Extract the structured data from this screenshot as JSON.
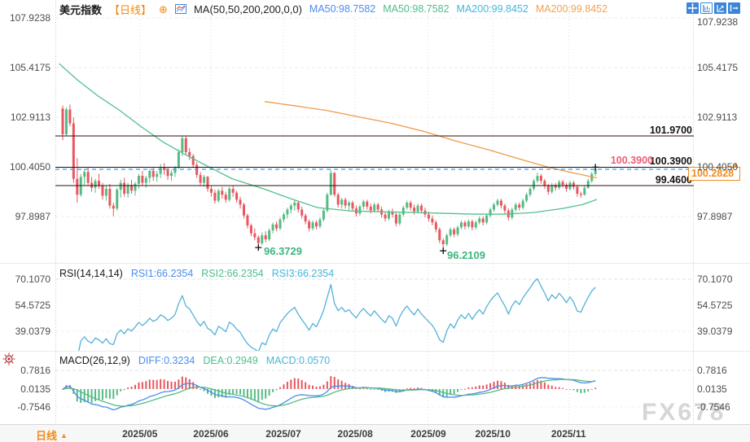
{
  "header": {
    "symbol": "美元指数",
    "period_tag": "【日线】",
    "ma_label": "MA(50,50,200,200,0,0)",
    "ma50_a": "MA50:98.7582",
    "ma50_b": "MA50:98.7582",
    "ma200_a": "MA200:99.8452",
    "ma200_b": "MA200:99.8452"
  },
  "toolbar_icons": [
    "pan-icon",
    "left-scale-icon",
    "right-scale-icon",
    "collapse-panel-icon"
  ],
  "main": {
    "line_label_1": "101.9700",
    "line_label_2": "100.3900",
    "line_label_3": "99.4600",
    "alert_label": "100.3900",
    "price_box": "100.2828",
    "axis_marker": "▲",
    "low1_label": "96.3729",
    "low2_label": "96.2109"
  },
  "rsi": {
    "title": "RSI(14,14,14)",
    "rsi1": "RSI1:66.2354",
    "rsi2": "RSI2:66.2354",
    "rsi3": "RSI3:66.2354"
  },
  "macd": {
    "title": "MACD(26,12,9)",
    "diff": "DIFF:0.3234",
    "dea": "DEA:0.2949",
    "macd": "MACD:0.0570"
  },
  "bottom_bar": {
    "period": "日线",
    "arrow": "▲"
  },
  "watermark": "FX678",
  "colors": {
    "up": "#56ba84",
    "down": "#e8575f",
    "ma50_line": "#52c08e",
    "ma200_line": "#f09a4a",
    "rsi_line": "#54b2d8",
    "diff_line": "#4a8df0",
    "dea_line": "#56ba84",
    "hist_pos": "#e8575f",
    "hist_neg": "#56ba84",
    "level_line": "#2e0e0e",
    "last_price_line": "#3f9bf0",
    "accent_orange": "#f08c1e",
    "alert_pink": "#ee5d72",
    "annotation_green": "#3cb67c",
    "toolbar_blue": "#3b86d8"
  },
  "chart_data": {
    "type": "candlestick",
    "title": "美元指数 日线 (US Dollar Index, daily)",
    "y_ticks_main": [
      "107.9238",
      "105.4175",
      "102.9113",
      "100.4050",
      "97.8987"
    ],
    "rsi_ticks": [
      "70.1070",
      "54.5725",
      "39.0379"
    ],
    "macd_ticks": [
      "0.7816",
      "0.0135",
      "-0.7546"
    ],
    "months": [
      {
        "label": "2025/05",
        "i": 21.3
      },
      {
        "label": "2025/06",
        "i": 40.9
      },
      {
        "label": "2025/07",
        "i": 60.9
      },
      {
        "label": "2025/08",
        "i": 80.7
      },
      {
        "label": "2025/09",
        "i": 100.9
      },
      {
        "label": "2025/10",
        "i": 118.7
      },
      {
        "label": "2025/11",
        "i": 139.6
      }
    ],
    "horizontal_lines": [
      101.97,
      100.39,
      99.46
    ],
    "current_price": 100.2828,
    "lows": [
      {
        "i": 54,
        "price": 96.3729,
        "label": "96.3729"
      },
      {
        "i": 105,
        "price": 96.2109,
        "label": "96.2109"
      }
    ],
    "last_marker": {
      "i": 147,
      "price": 100.39
    },
    "ma50": [
      [
        -1,
        105.62
      ],
      [
        4,
        104.8
      ],
      [
        9.7,
        103.99
      ],
      [
        15.7,
        103.26
      ],
      [
        21.3,
        102.48
      ],
      [
        27.6,
        101.67
      ],
      [
        33.9,
        101.02
      ],
      [
        40.7,
        100.37
      ],
      [
        46.7,
        99.81
      ],
      [
        55.7,
        99.28
      ],
      [
        62.5,
        98.83
      ],
      [
        70.3,
        98.35
      ],
      [
        79.3,
        98.18
      ],
      [
        88.3,
        98.14
      ],
      [
        97.3,
        98.1
      ],
      [
        105.2,
        98.06
      ],
      [
        113,
        98.02
      ],
      [
        122,
        98.02
      ],
      [
        129.9,
        98.1
      ],
      [
        137.8,
        98.3
      ],
      [
        143.4,
        98.5
      ],
      [
        147.4,
        98.76
      ]
    ],
    "ma200": [
      [
        55.7,
        103.7
      ],
      [
        63.6,
        103.5
      ],
      [
        72.6,
        103.26
      ],
      [
        81.6,
        102.93
      ],
      [
        90.6,
        102.61
      ],
      [
        99.6,
        102.2
      ],
      [
        108.5,
        101.71
      ],
      [
        117.5,
        101.27
      ],
      [
        126.5,
        100.78
      ],
      [
        134.4,
        100.37
      ],
      [
        141.1,
        100.09
      ],
      [
        147.4,
        99.85
      ]
    ],
    "candles": [
      [
        103.35,
        103.5,
        101.75,
        102.05
      ],
      [
        102.05,
        103.4,
        101.95,
        103.3
      ],
      [
        103.3,
        103.55,
        102.45,
        102.6
      ],
      [
        102.6,
        102.9,
        99.6,
        99.8
      ],
      [
        99.8,
        100.85,
        98.6,
        99.0
      ],
      [
        99.0,
        100.05,
        98.9,
        99.9
      ],
      [
        99.9,
        100.3,
        99.45,
        100.15
      ],
      [
        100.15,
        100.4,
        99.45,
        99.6
      ],
      [
        99.6,
        99.9,
        99.15,
        99.35
      ],
      [
        99.35,
        99.8,
        99.1,
        99.7
      ],
      [
        99.7,
        100.05,
        99.3,
        99.45
      ],
      [
        99.45,
        99.6,
        98.75,
        98.95
      ],
      [
        98.95,
        99.45,
        98.7,
        99.3
      ],
      [
        99.3,
        99.55,
        98.3,
        98.45
      ],
      [
        98.45,
        98.6,
        97.92,
        98.3
      ],
      [
        98.3,
        99.35,
        98.2,
        99.25
      ],
      [
        99.25,
        99.75,
        98.85,
        99.6
      ],
      [
        99.6,
        99.85,
        98.9,
        99.05
      ],
      [
        99.05,
        99.6,
        98.85,
        99.5
      ],
      [
        99.5,
        99.75,
        99.05,
        99.2
      ],
      [
        99.2,
        99.65,
        98.95,
        99.55
      ],
      [
        99.55,
        100.05,
        99.3,
        99.95
      ],
      [
        99.95,
        100.2,
        99.45,
        99.6
      ],
      [
        99.6,
        99.95,
        99.35,
        99.85
      ],
      [
        99.85,
        100.3,
        99.6,
        100.2
      ],
      [
        100.2,
        100.35,
        99.7,
        99.9
      ],
      [
        99.9,
        100.2,
        99.65,
        100.05
      ],
      [
        100.05,
        100.55,
        99.85,
        100.4
      ],
      [
        100.4,
        100.6,
        100.0,
        100.25
      ],
      [
        100.25,
        100.4,
        99.75,
        99.95
      ],
      [
        99.95,
        100.25,
        99.7,
        100.1
      ],
      [
        100.1,
        100.45,
        99.9,
        100.35
      ],
      [
        100.35,
        101.3,
        100.3,
        101.15
      ],
      [
        101.15,
        101.98,
        100.95,
        101.85
      ],
      [
        101.85,
        101.95,
        101.0,
        101.15
      ],
      [
        101.15,
        101.35,
        100.75,
        100.95
      ],
      [
        100.95,
        101.05,
        100.35,
        100.5
      ],
      [
        100.5,
        100.65,
        99.85,
        100.0
      ],
      [
        100.0,
        100.15,
        99.45,
        99.6
      ],
      [
        99.6,
        100.0,
        99.4,
        99.9
      ],
      [
        99.9,
        99.95,
        99.15,
        99.3
      ],
      [
        99.3,
        99.45,
        98.9,
        99.1
      ],
      [
        99.1,
        99.25,
        98.55,
        98.7
      ],
      [
        98.7,
        99.3,
        98.6,
        99.2
      ],
      [
        99.2,
        99.4,
        98.8,
        99.0
      ],
      [
        99.0,
        99.15,
        98.6,
        98.75
      ],
      [
        98.75,
        99.4,
        98.65,
        99.3
      ],
      [
        99.3,
        99.45,
        98.9,
        99.1
      ],
      [
        99.1,
        99.2,
        98.6,
        98.75
      ],
      [
        98.75,
        98.9,
        98.3,
        98.5
      ],
      [
        98.5,
        98.6,
        97.8,
        97.95
      ],
      [
        97.95,
        98.05,
        97.3,
        97.45
      ],
      [
        97.45,
        97.55,
        96.9,
        97.05
      ],
      [
        97.05,
        97.3,
        96.7,
        96.85
      ],
      [
        96.85,
        96.95,
        96.37,
        96.55
      ],
      [
        96.55,
        97.1,
        96.45,
        96.95
      ],
      [
        96.95,
        97.15,
        96.6,
        96.75
      ],
      [
        96.75,
        97.3,
        96.65,
        97.2
      ],
      [
        97.2,
        97.6,
        97.05,
        97.5
      ],
      [
        97.5,
        97.65,
        97.15,
        97.3
      ],
      [
        97.3,
        97.85,
        97.2,
        97.75
      ],
      [
        97.75,
        98.1,
        97.6,
        98.0
      ],
      [
        98.0,
        98.35,
        97.8,
        98.25
      ],
      [
        98.25,
        98.55,
        98.05,
        98.45
      ],
      [
        98.45,
        98.75,
        98.2,
        98.6
      ],
      [
        98.6,
        98.7,
        98.1,
        98.25
      ],
      [
        98.25,
        98.4,
        97.8,
        97.95
      ],
      [
        97.95,
        98.05,
        97.5,
        97.65
      ],
      [
        97.65,
        97.75,
        97.15,
        97.3
      ],
      [
        97.3,
        97.7,
        97.2,
        97.6
      ],
      [
        97.6,
        97.7,
        97.25,
        97.4
      ],
      [
        97.4,
        97.85,
        97.3,
        97.75
      ],
      [
        97.75,
        98.3,
        97.65,
        98.2
      ],
      [
        98.2,
        99.1,
        98.1,
        99.0
      ],
      [
        99.0,
        100.26,
        98.95,
        100.1
      ],
      [
        100.1,
        100.15,
        98.9,
        99.0
      ],
      [
        99.0,
        99.1,
        98.35,
        98.5
      ],
      [
        98.5,
        98.85,
        98.3,
        98.75
      ],
      [
        98.75,
        98.85,
        98.3,
        98.45
      ],
      [
        98.45,
        98.7,
        98.2,
        98.6
      ],
      [
        98.6,
        98.7,
        98.15,
        98.3
      ],
      [
        98.3,
        98.45,
        97.9,
        98.05
      ],
      [
        98.05,
        98.5,
        97.95,
        98.4
      ],
      [
        98.4,
        98.75,
        98.25,
        98.65
      ],
      [
        98.65,
        98.75,
        98.25,
        98.4
      ],
      [
        98.4,
        98.55,
        98.05,
        98.2
      ],
      [
        98.2,
        98.6,
        98.1,
        98.5
      ],
      [
        98.5,
        98.6,
        98.1,
        98.25
      ],
      [
        98.25,
        98.4,
        97.85,
        98.0
      ],
      [
        98.0,
        98.15,
        97.65,
        97.8
      ],
      [
        97.8,
        98.25,
        97.7,
        98.15
      ],
      [
        98.15,
        98.3,
        97.85,
        98.0
      ],
      [
        98.0,
        98.1,
        97.4,
        97.55
      ],
      [
        97.55,
        98.1,
        97.45,
        98.0
      ],
      [
        98.0,
        98.45,
        97.9,
        98.35
      ],
      [
        98.35,
        98.7,
        98.25,
        98.6
      ],
      [
        98.6,
        98.7,
        98.2,
        98.35
      ],
      [
        98.35,
        98.5,
        98.0,
        98.15
      ],
      [
        98.15,
        98.55,
        98.05,
        98.45
      ],
      [
        98.45,
        98.55,
        98.05,
        98.2
      ],
      [
        98.2,
        98.35,
        97.85,
        98.0
      ],
      [
        98.0,
        98.15,
        97.65,
        97.8
      ],
      [
        97.8,
        97.95,
        97.45,
        97.6
      ],
      [
        97.6,
        97.7,
        97.1,
        97.25
      ],
      [
        97.25,
        97.35,
        96.55,
        96.7
      ],
      [
        96.7,
        96.8,
        96.21,
        96.5
      ],
      [
        96.5,
        97.05,
        96.4,
        96.95
      ],
      [
        96.95,
        97.35,
        96.85,
        97.25
      ],
      [
        97.25,
        97.35,
        96.85,
        97.0
      ],
      [
        97.0,
        97.45,
        96.9,
        97.35
      ],
      [
        97.35,
        97.7,
        97.25,
        97.6
      ],
      [
        97.6,
        97.7,
        97.25,
        97.4
      ],
      [
        97.4,
        97.75,
        97.3,
        97.65
      ],
      [
        97.65,
        97.75,
        97.2,
        97.35
      ],
      [
        97.35,
        97.7,
        97.25,
        97.6
      ],
      [
        97.6,
        97.9,
        97.5,
        97.8
      ],
      [
        97.8,
        97.9,
        97.45,
        97.6
      ],
      [
        97.6,
        98.05,
        97.5,
        97.95
      ],
      [
        97.95,
        98.35,
        97.85,
        98.25
      ],
      [
        98.25,
        98.6,
        98.15,
        98.5
      ],
      [
        98.5,
        98.8,
        98.4,
        98.7
      ],
      [
        98.7,
        98.8,
        98.3,
        98.45
      ],
      [
        98.45,
        98.55,
        98.05,
        98.2
      ],
      [
        98.2,
        98.3,
        97.7,
        97.85
      ],
      [
        97.85,
        98.35,
        97.75,
        98.25
      ],
      [
        98.25,
        98.6,
        98.15,
        98.5
      ],
      [
        98.5,
        98.6,
        98.2,
        98.35
      ],
      [
        98.35,
        98.8,
        98.25,
        98.7
      ],
      [
        98.7,
        99.1,
        98.6,
        99.0
      ],
      [
        99.0,
        99.4,
        98.9,
        99.3
      ],
      [
        99.3,
        99.8,
        99.2,
        99.7
      ],
      [
        99.7,
        100.1,
        99.6,
        99.95
      ],
      [
        99.95,
        100.05,
        99.55,
        99.7
      ],
      [
        99.7,
        99.8,
        99.3,
        99.45
      ],
      [
        99.45,
        99.55,
        99.0,
        99.15
      ],
      [
        99.15,
        99.6,
        99.05,
        99.5
      ],
      [
        99.5,
        99.6,
        99.2,
        99.35
      ],
      [
        99.35,
        99.75,
        99.25,
        99.65
      ],
      [
        99.65,
        99.75,
        99.35,
        99.5
      ],
      [
        99.5,
        99.6,
        99.15,
        99.3
      ],
      [
        99.3,
        99.7,
        99.2,
        99.6
      ],
      [
        99.6,
        99.7,
        99.25,
        99.4
      ],
      [
        99.4,
        99.5,
        98.9,
        99.05
      ],
      [
        99.05,
        99.15,
        98.85,
        99.0
      ],
      [
        99.0,
        99.45,
        98.95,
        99.35
      ],
      [
        99.35,
        99.8,
        99.3,
        99.7
      ],
      [
        99.7,
        100.15,
        99.6,
        100.05
      ],
      [
        100.05,
        100.39,
        99.95,
        100.28
      ]
    ]
  }
}
